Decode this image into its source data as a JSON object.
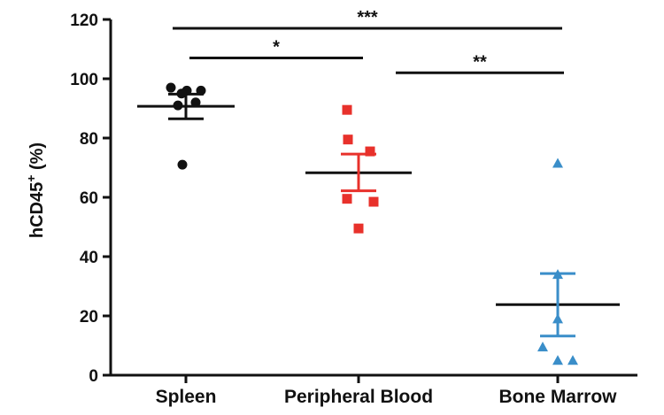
{
  "chart_data": {
    "type": "scatter",
    "ylabel": {
      "main": "hCD45",
      "sup": "+",
      "unit": " (%)"
    },
    "ylim": [
      0,
      120
    ],
    "yticks": [
      "0",
      "20",
      "40",
      "60",
      "80",
      "100",
      "120"
    ],
    "grid": false,
    "categories": [
      "Spleen",
      "Peripheral Blood",
      "Bone Marrow"
    ],
    "series": [
      {
        "category": "Spleen",
        "marker": "circle",
        "color": "#111111",
        "points": [
          97,
          96,
          96,
          95,
          92,
          91,
          71
        ],
        "mean": 90.7,
        "sem_low": 86.5,
        "sem_high": 94.8
      },
      {
        "category": "Peripheral Blood",
        "marker": "square",
        "color": "#e8312b",
        "points": [
          89.5,
          79.5,
          75.5,
          59.5,
          58.5,
          49.5
        ],
        "mean": 68.3,
        "sem_low": 62.2,
        "sem_high": 74.6
      },
      {
        "category": "Bone Marrow",
        "marker": "triangle",
        "color": "#3a8ec9",
        "points": [
          71.5,
          34,
          19,
          9.5,
          5,
          5
        ],
        "mean": 23.8,
        "sem_low": 13.2,
        "sem_high": 34.3
      }
    ],
    "significance": [
      {
        "from": 0,
        "to": 1,
        "y": 107,
        "label": "*"
      },
      {
        "from": 1,
        "to": 2,
        "y": 102,
        "label": "**"
      },
      {
        "from": 0,
        "to": 2,
        "y": 117,
        "label": "***"
      }
    ]
  }
}
